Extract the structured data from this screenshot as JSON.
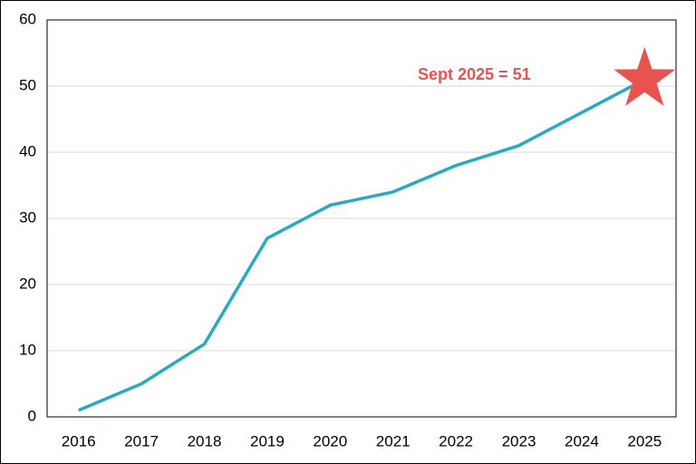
{
  "chart_data": {
    "type": "line",
    "categories": [
      "2016",
      "2017",
      "2018",
      "2019",
      "2020",
      "2021",
      "2022",
      "2023",
      "2024",
      "2025"
    ],
    "values": [
      1,
      5,
      11,
      27,
      32,
      34,
      38,
      41,
      46,
      51
    ],
    "color": "#2aa9c2",
    "ylim": [
      0,
      60
    ],
    "yticks": [
      0,
      10,
      20,
      30,
      40,
      50,
      60
    ],
    "grid": true,
    "annotation": {
      "text": "Sept 2025 = 51",
      "color": "#e8534f"
    }
  }
}
